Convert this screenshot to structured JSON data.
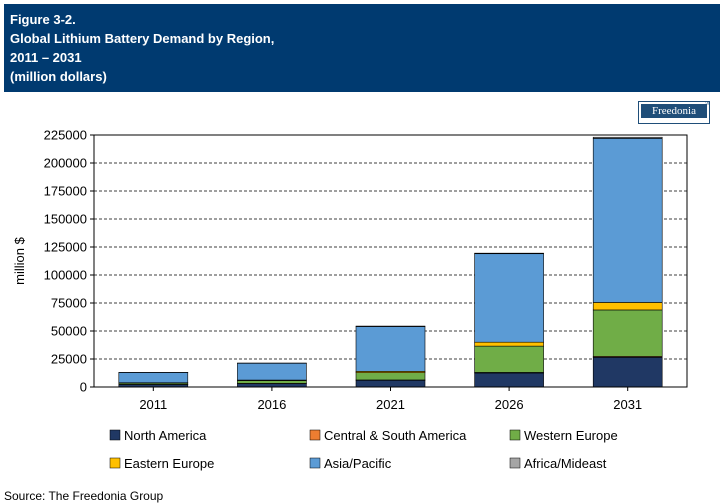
{
  "header": {
    "line1": "Figure 3-2.",
    "line2": "Global Lithium Battery Demand by Region,",
    "line3": "2011 – 2031",
    "line4": "(million dollars)"
  },
  "logo": {
    "text": "Freedonia",
    "reg": "®"
  },
  "source": "Source: The Freedonia Group",
  "colors": {
    "header_bg": "#003a70",
    "north_america": "#203864",
    "central_south_america": "#ed7d31",
    "western_europe": "#70ad47",
    "eastern_europe": "#ffc000",
    "asia_pacific": "#5b9bd5",
    "africa_mideast": "#a5a5a5"
  },
  "chart_data": {
    "type": "bar",
    "stacked": true,
    "ylabel": "million $",
    "xlabel": "",
    "ylim": [
      0,
      225000
    ],
    "yticks": [
      "0",
      "25000",
      "50000",
      "75000",
      "100000",
      "125000",
      "150000",
      "175000",
      "200000",
      "225000"
    ],
    "grid": true,
    "legend_position": "bottom",
    "categories": [
      "2011",
      "2016",
      "2021",
      "2026",
      "2031"
    ],
    "series": [
      {
        "name": "North America",
        "color": "#203864",
        "values": [
          2200,
          3000,
          6000,
          12500,
          26500
        ]
      },
      {
        "name": "Central & South America",
        "color": "#ed7d31",
        "values": [
          100,
          200,
          300,
          500,
          800
        ]
      },
      {
        "name": "Western Europe",
        "color": "#70ad47",
        "values": [
          1200,
          2500,
          6500,
          23500,
          41500
        ]
      },
      {
        "name": "Eastern Europe",
        "color": "#ffc000",
        "values": [
          300,
          500,
          1200,
          3500,
          6700
        ]
      },
      {
        "name": "Asia/Pacific",
        "color": "#5b9bd5",
        "values": [
          9200,
          15000,
          40000,
          79000,
          146500
        ]
      },
      {
        "name": "Africa/Mideast",
        "color": "#a5a5a5",
        "values": [
          100,
          200,
          400,
          500,
          1000
        ]
      }
    ]
  }
}
